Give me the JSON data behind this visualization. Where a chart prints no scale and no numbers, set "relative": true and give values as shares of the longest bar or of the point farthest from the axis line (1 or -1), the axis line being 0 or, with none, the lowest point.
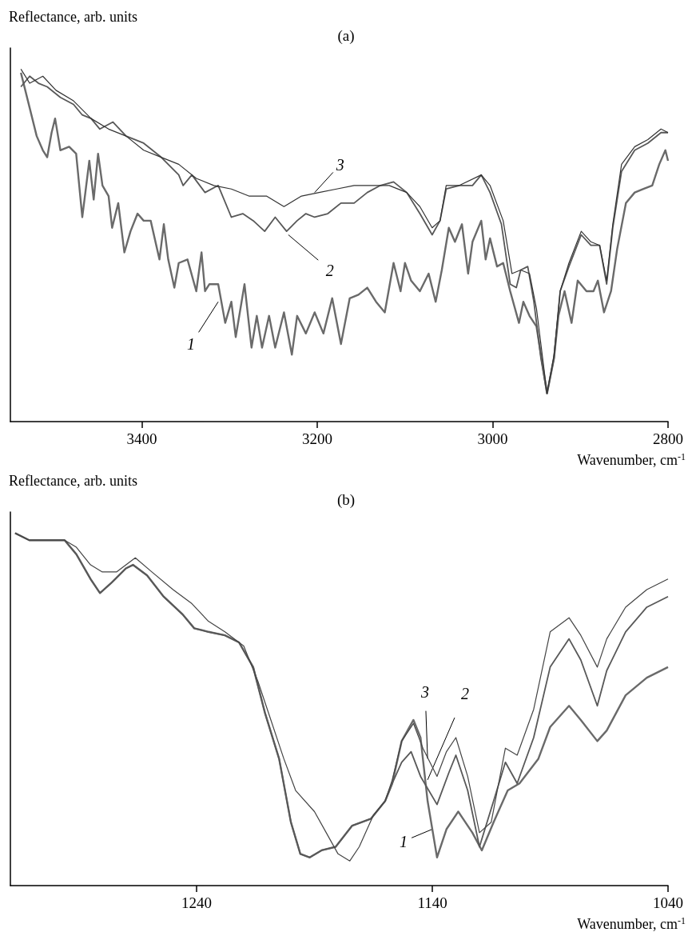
{
  "chart_data": [
    {
      "type": "line",
      "title": "(a)",
      "xlabel": "Wavenumber, cm$^{-1}$",
      "ylabel": "Reflectance, arb. units",
      "relative": true,
      "xlim": [
        3550,
        2800
      ],
      "xticks": [
        3400,
        3200,
        3000,
        2800
      ],
      "annotations": [
        {
          "text": "1",
          "x": 3313,
          "y": 0.34
        },
        {
          "text": "2",
          "x": 3233,
          "y": 0.53
        },
        {
          "text": "3",
          "x": 3203,
          "y": 0.65
        }
      ],
      "series": [
        {
          "color": "#6a6a6a",
          "x": [
            3538,
            3528,
            3520,
            3513,
            3508,
            3503,
            3499,
            3493,
            3483,
            3475,
            3468,
            3460,
            3455,
            3450,
            3445,
            3438,
            3434,
            3427,
            3420,
            3413,
            3405,
            3398,
            3390,
            3380,
            3375,
            3370,
            3363,
            3358,
            3348,
            3338,
            3332,
            3328,
            3323,
            3313,
            3305,
            3298,
            3293,
            3283,
            3275,
            3269,
            3263,
            3255,
            3248,
            3238,
            3229,
            3223,
            3213,
            3203,
            3193,
            3183,
            3173,
            3163,
            3153,
            3143,
            3133,
            3123,
            3113,
            3105,
            3100,
            3093,
            3083,
            3073,
            3065,
            3058,
            3050,
            3043,
            3035,
            3028,
            3023,
            3013,
            3008,
            3003,
            2995,
            2988,
            2980,
            2970,
            2965,
            2958,
            2950,
            2938,
            2930,
            2925,
            2918,
            2910,
            2903,
            2893,
            2885,
            2880,
            2873,
            2865,
            2858,
            2848,
            2838,
            2828,
            2818,
            2810,
            2803,
            2800
          ],
          "values": [
            0.99,
            0.89,
            0.81,
            0.77,
            0.75,
            0.82,
            0.86,
            0.77,
            0.78,
            0.76,
            0.58,
            0.74,
            0.63,
            0.76,
            0.67,
            0.64,
            0.55,
            0.62,
            0.48,
            0.54,
            0.59,
            0.57,
            0.57,
            0.46,
            0.56,
            0.46,
            0.38,
            0.45,
            0.46,
            0.37,
            0.48,
            0.37,
            0.39,
            0.39,
            0.28,
            0.34,
            0.24,
            0.39,
            0.21,
            0.3,
            0.21,
            0.3,
            0.21,
            0.31,
            0.19,
            0.3,
            0.25,
            0.31,
            0.25,
            0.35,
            0.22,
            0.35,
            0.36,
            0.38,
            0.34,
            0.31,
            0.45,
            0.37,
            0.45,
            0.4,
            0.37,
            0.42,
            0.34,
            0.43,
            0.55,
            0.51,
            0.56,
            0.42,
            0.51,
            0.57,
            0.46,
            0.52,
            0.44,
            0.45,
            0.37,
            0.28,
            0.34,
            0.3,
            0.27,
            0.08,
            0.18,
            0.3,
            0.37,
            0.28,
            0.4,
            0.37,
            0.37,
            0.4,
            0.31,
            0.37,
            0.49,
            0.62,
            0.65,
            0.66,
            0.67,
            0.73,
            0.77,
            0.74
          ]
        },
        {
          "color": "#585858",
          "x": [
            3538,
            3528,
            3518,
            3508,
            3493,
            3478,
            3468,
            3458,
            3448,
            3433,
            3418,
            3398,
            3378,
            3358,
            3353,
            3343,
            3328,
            3313,
            3298,
            3285,
            3273,
            3260,
            3248,
            3235,
            3223,
            3213,
            3203,
            3188,
            3173,
            3158,
            3143,
            3128,
            3113,
            3098,
            3083,
            3069,
            3060,
            3053,
            3038,
            3023,
            3013,
            3003,
            2990,
            2980,
            2973,
            2968,
            2960,
            2953,
            2945,
            2938,
            2930,
            2923,
            2913,
            2899,
            2888,
            2878,
            2870,
            2863,
            2853,
            2838,
            2823,
            2808,
            2800
          ],
          "values": [
            0.95,
            0.98,
            0.96,
            0.95,
            0.92,
            0.9,
            0.87,
            0.86,
            0.83,
            0.85,
            0.81,
            0.79,
            0.75,
            0.7,
            0.67,
            0.7,
            0.65,
            0.67,
            0.58,
            0.59,
            0.57,
            0.54,
            0.58,
            0.54,
            0.57,
            0.59,
            0.58,
            0.59,
            0.62,
            0.62,
            0.65,
            0.67,
            0.68,
            0.65,
            0.59,
            0.53,
            0.57,
            0.66,
            0.67,
            0.67,
            0.7,
            0.65,
            0.56,
            0.39,
            0.38,
            0.43,
            0.44,
            0.34,
            0.18,
            0.08,
            0.18,
            0.37,
            0.44,
            0.53,
            0.5,
            0.5,
            0.39,
            0.55,
            0.71,
            0.77,
            0.79,
            0.82,
            0.82
          ]
        },
        {
          "color": "#333333",
          "x": [
            3538,
            3528,
            3513,
            3498,
            3478,
            3458,
            3438,
            3418,
            3398,
            3378,
            3358,
            3338,
            3318,
            3298,
            3278,
            3258,
            3238,
            3218,
            3198,
            3178,
            3158,
            3138,
            3118,
            3098,
            3083,
            3069,
            3060,
            3053,
            3038,
            3013,
            3003,
            2988,
            2978,
            2968,
            2958,
            2950,
            2938,
            2930,
            2923,
            2913,
            2899,
            2888,
            2878,
            2870,
            2863,
            2853,
            2838,
            2823,
            2808,
            2800
          ],
          "values": [
            1.0,
            0.96,
            0.98,
            0.94,
            0.91,
            0.86,
            0.83,
            0.81,
            0.77,
            0.75,
            0.73,
            0.69,
            0.67,
            0.66,
            0.64,
            0.64,
            0.61,
            0.64,
            0.65,
            0.66,
            0.67,
            0.67,
            0.67,
            0.65,
            0.61,
            0.55,
            0.57,
            0.67,
            0.67,
            0.7,
            0.67,
            0.57,
            0.42,
            0.43,
            0.42,
            0.32,
            0.08,
            0.19,
            0.37,
            0.45,
            0.54,
            0.51,
            0.5,
            0.4,
            0.56,
            0.73,
            0.78,
            0.8,
            0.83,
            0.82
          ]
        }
      ]
    },
    {
      "type": "line",
      "title": "(b)",
      "xlabel": "Wavenumber, cm$^{-1}$",
      "ylabel": "Reflectance, arb. units",
      "relative": true,
      "xlim": [
        1319,
        1040
      ],
      "xticks": [
        1240,
        1140,
        1040
      ],
      "annotations": [
        {
          "text": "1",
          "x": 1140,
          "y": 0.16
        },
        {
          "text": "2",
          "x": 1142,
          "y": 0.3
        },
        {
          "text": "3",
          "x": 1142,
          "y": 0.36
        }
      ],
      "series": [
        {
          "color": "#6a6a6a",
          "x": [
            1317,
            1311,
            1304,
            1296,
            1291,
            1285,
            1281,
            1276,
            1270,
            1267,
            1261,
            1254,
            1246,
            1241,
            1235,
            1228,
            1222,
            1216,
            1211,
            1205,
            1200,
            1196,
            1192,
            1187,
            1181,
            1174,
            1166,
            1160,
            1157,
            1153,
            1148,
            1145,
            1142,
            1138,
            1134,
            1129,
            1123,
            1119,
            1114,
            1108,
            1103,
            1095,
            1090,
            1082,
            1077,
            1070,
            1066,
            1058,
            1049,
            1040
          ],
          "values": [
            1.0,
            0.98,
            0.98,
            0.98,
            0.94,
            0.87,
            0.83,
            0.86,
            0.9,
            0.91,
            0.88,
            0.82,
            0.77,
            0.73,
            0.72,
            0.71,
            0.69,
            0.62,
            0.49,
            0.36,
            0.18,
            0.09,
            0.08,
            0.1,
            0.11,
            0.17,
            0.19,
            0.24,
            0.29,
            0.41,
            0.47,
            0.42,
            0.24,
            0.08,
            0.16,
            0.21,
            0.15,
            0.1,
            0.18,
            0.27,
            0.29,
            0.36,
            0.45,
            0.51,
            0.47,
            0.41,
            0.44,
            0.54,
            0.59,
            0.62
          ]
        },
        {
          "color": "#585858",
          "x": [
            1317,
            1311,
            1304,
            1296,
            1291,
            1285,
            1281,
            1276,
            1270,
            1267,
            1261,
            1254,
            1246,
            1241,
            1235,
            1228,
            1222,
            1216,
            1211,
            1205,
            1200,
            1196,
            1192,
            1187,
            1181,
            1174,
            1166,
            1160,
            1157,
            1153,
            1149,
            1145,
            1138,
            1133,
            1130,
            1125,
            1120,
            1114,
            1109,
            1104,
            1097,
            1090,
            1082,
            1077,
            1070,
            1066,
            1058,
            1049,
            1040
          ],
          "values": [
            1.0,
            0.98,
            0.98,
            0.98,
            0.94,
            0.87,
            0.83,
            0.86,
            0.9,
            0.91,
            0.88,
            0.82,
            0.77,
            0.73,
            0.72,
            0.71,
            0.69,
            0.62,
            0.49,
            0.36,
            0.18,
            0.09,
            0.08,
            0.1,
            0.11,
            0.17,
            0.19,
            0.24,
            0.29,
            0.35,
            0.38,
            0.31,
            0.23,
            0.32,
            0.37,
            0.27,
            0.11,
            0.24,
            0.35,
            0.29,
            0.42,
            0.62,
            0.7,
            0.64,
            0.51,
            0.61,
            0.72,
            0.79,
            0.82
          ]
        },
        {
          "color": "#444444",
          "x": [
            1317,
            1311,
            1304,
            1296,
            1291,
            1285,
            1280,
            1274,
            1266,
            1259,
            1250,
            1242,
            1235,
            1228,
            1220,
            1214,
            1209,
            1203,
            1198,
            1190,
            1185,
            1180,
            1175,
            1171,
            1165,
            1160,
            1157,
            1153,
            1148,
            1144,
            1138,
            1134,
            1130,
            1125,
            1120,
            1115,
            1109,
            1104,
            1097,
            1090,
            1082,
            1077,
            1070,
            1066,
            1058,
            1049,
            1040
          ],
          "values": [
            1.0,
            0.98,
            0.98,
            0.98,
            0.96,
            0.91,
            0.89,
            0.89,
            0.93,
            0.89,
            0.84,
            0.8,
            0.75,
            0.72,
            0.68,
            0.58,
            0.48,
            0.36,
            0.27,
            0.21,
            0.15,
            0.09,
            0.07,
            0.11,
            0.2,
            0.24,
            0.3,
            0.41,
            0.46,
            0.39,
            0.31,
            0.38,
            0.42,
            0.31,
            0.15,
            0.18,
            0.39,
            0.37,
            0.5,
            0.72,
            0.76,
            0.71,
            0.62,
            0.7,
            0.79,
            0.84,
            0.87
          ]
        }
      ]
    }
  ]
}
